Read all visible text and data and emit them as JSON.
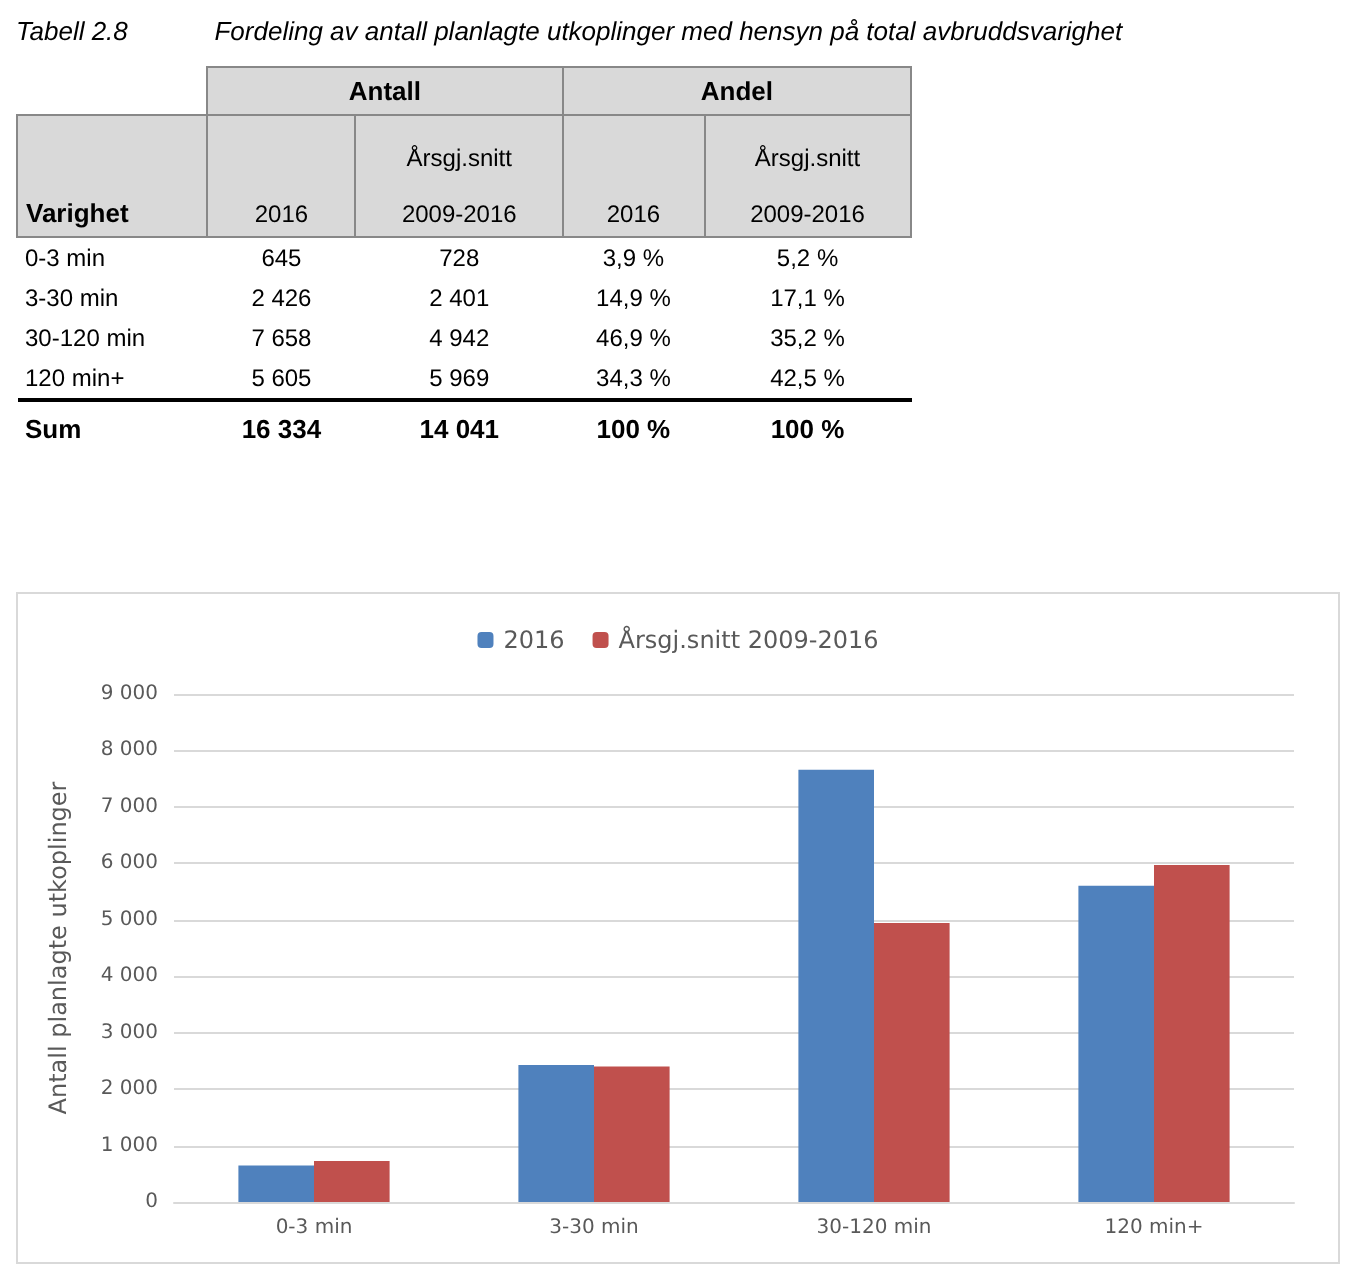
{
  "chart_data": [
    {
      "type": "other",
      "title": "Tabell 2.8            Fordeling av antall planlagte utkoplinger med hensyn på total avbruddsvarighet",
      "annotations": [
        "Antall",
        "Andel",
        "Varighet"
      ],
      "categories": [
        "2016",
        "Årsgj.snitt 2009-2016",
        "2016",
        "Årsgj.snitt 2009-2016"
      ],
      "y_categories": [
        "0-3 min",
        "3-30 min",
        "30-120 min",
        "120 min+",
        "Sum"
      ],
      "cell_labels": [
        [
          "645",
          "728",
          "3,9 %",
          "5,2 %"
        ],
        [
          "2 426",
          "2 401",
          "14,9 %",
          "17,1 %"
        ],
        [
          "7 658",
          "4 942",
          "46,9 %",
          "35,2 %"
        ],
        [
          "5 605",
          "5 969",
          "34,3 %",
          "42,5 %"
        ],
        [
          "16 334",
          "14 041",
          "100 %",
          "100 %"
        ]
      ]
    },
    {
      "type": "bar",
      "ylabel": "Antall planlagte utkoplinger",
      "categories": [
        "0-3 min",
        "3-30 min",
        "30-120 min",
        "120 min+"
      ],
      "series": [
        {
          "name": "2016",
          "color": "#4f81bd",
          "values": [
            645,
            2426,
            7658,
            5605
          ]
        },
        {
          "name": "Årsgj.snitt 2009-2016",
          "color": "#c0504d",
          "values": [
            728,
            2401,
            4942,
            5969
          ]
        }
      ],
      "ylim": [
        0,
        9000
      ],
      "yticks": [
        0,
        {
          "value": 1000,
          "label": "1 000"
        },
        {
          "value": 2000,
          "label": "2 000"
        },
        {
          "value": 3000,
          "label": "3 000"
        },
        {
          "value": 4000,
          "label": "4 000"
        },
        {
          "value": 5000,
          "label": "5 000"
        },
        {
          "value": 6000,
          "label": "6 000"
        },
        {
          "value": 7000,
          "label": "7 000"
        },
        {
          "value": 8000,
          "label": "8 000"
        },
        {
          "value": 9000,
          "label": "9 000"
        }
      ],
      "grid": "y",
      "legend": "top"
    }
  ]
}
